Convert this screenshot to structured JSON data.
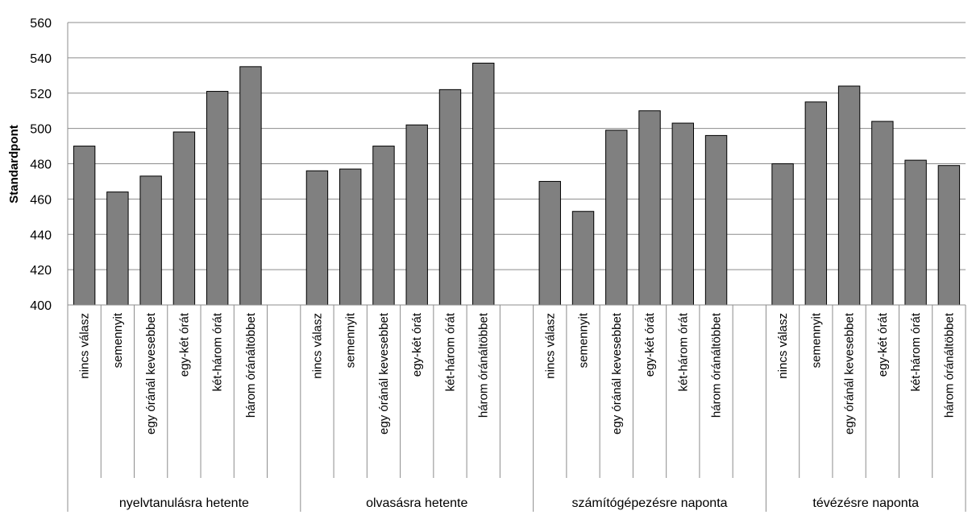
{
  "chart_data": {
    "type": "bar",
    "ylabel": "Standardpont",
    "ylim": [
      400,
      560
    ],
    "yticks": [
      "400",
      "420",
      "440",
      "460",
      "480",
      "500",
      "520",
      "540",
      "560"
    ],
    "grid": true,
    "bar_color": "#808080",
    "groups": [
      {
        "name": "nyelvtanulásra hetente",
        "categories": [
          "nincs válasz",
          "semennyit",
          "egy óránál kevesebbet",
          "egy-két órát",
          "két-három órát",
          "három óránáltöbbet"
        ],
        "values": [
          490,
          464,
          473,
          498,
          521,
          535
        ]
      },
      {
        "name": "olvasásra hetente",
        "categories": [
          "nincs válasz",
          "semennyit",
          "egy óránál kevesebbet",
          "egy-két órát",
          "két-három órát",
          "három óránáltöbbet"
        ],
        "values": [
          476,
          477,
          490,
          502,
          522,
          537
        ]
      },
      {
        "name": "számítógépezésre naponta",
        "categories": [
          "nincs válasz",
          "semennyit",
          "egy óránál kevesebbet",
          "egy-két órát",
          "két-három órát",
          "három óránáltöbbet"
        ],
        "values": [
          470,
          453,
          499,
          510,
          503,
          496
        ]
      },
      {
        "name": "tévézésre naponta",
        "categories": [
          "nincs válasz",
          "semennyit",
          "egy óránál kevesebbet",
          "egy-két órát",
          "két-három órát",
          "három óránáltöbbet"
        ],
        "values": [
          480,
          515,
          524,
          504,
          482,
          479
        ]
      }
    ]
  }
}
